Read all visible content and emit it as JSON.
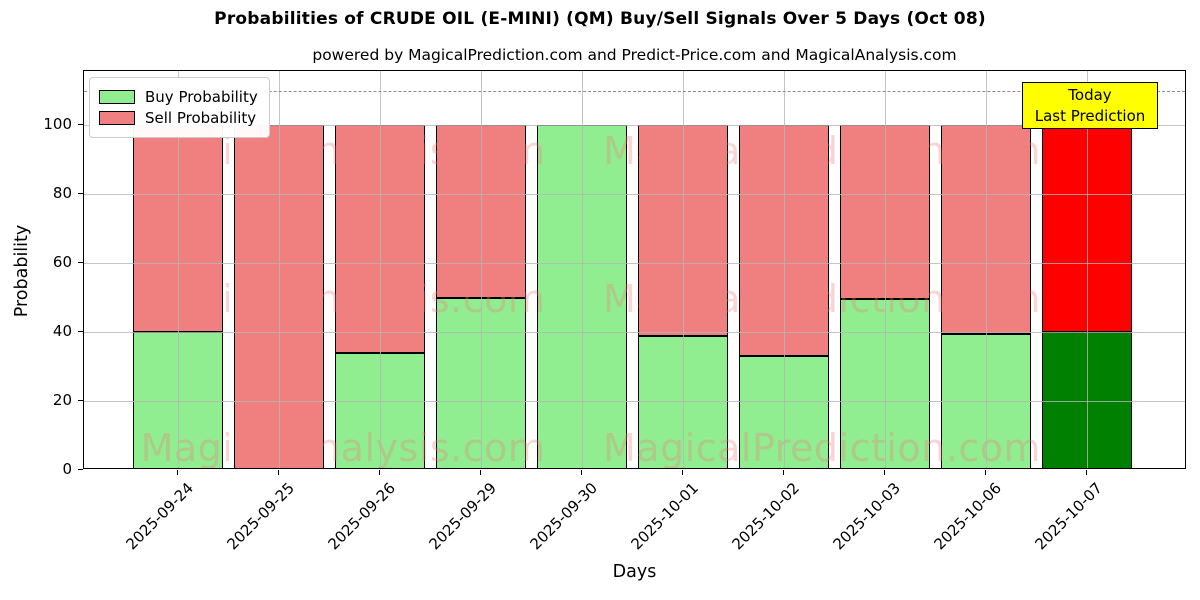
{
  "title": "Probabilities of CRUDE OIL (E-MINI) (QM) Buy/Sell Signals Over 5 Days (Oct 08)",
  "subtitle": "powered by MagicalPrediction.com and Predict-Price.com and MagicalAnalysis.com",
  "chart_data": {
    "type": "bar",
    "stacked": true,
    "categories": [
      "2025-09-24",
      "2025-09-25",
      "2025-09-26",
      "2025-09-29",
      "2025-09-30",
      "2025-10-01",
      "2025-10-02",
      "2025-10-03",
      "2025-10-06",
      "2025-10-07"
    ],
    "series": [
      {
        "name": "Buy Probability",
        "values": [
          40,
          0,
          34,
          50,
          100,
          39,
          33,
          49.5,
          39.5,
          40
        ],
        "color": "#90ee90",
        "today_color": "#008000"
      },
      {
        "name": "Sell Probability",
        "values": [
          60,
          100,
          66,
          50,
          0,
          61,
          67,
          50.5,
          60.5,
          60
        ],
        "color": "#f08080",
        "today_color": "#ff0000"
      }
    ],
    "today_index": 9,
    "xlabel": "Days",
    "ylabel": "Probability",
    "yticks": [
      0,
      20,
      40,
      60,
      80,
      100
    ],
    "ylim": [
      0,
      115.7
    ],
    "dashed_line_y": 110,
    "grid": true,
    "legend_position": "upper left",
    "bar_edge_color": "#000000"
  },
  "annotation": {
    "lines": [
      "Today",
      "Last Prediction"
    ],
    "bg_color": "#ffff00"
  },
  "watermarks": {
    "left_text": "MagicalAnalysis.com",
    "right_text": "MagicalPrediction.com",
    "color": "rgba(240,128,128,0.33)"
  }
}
